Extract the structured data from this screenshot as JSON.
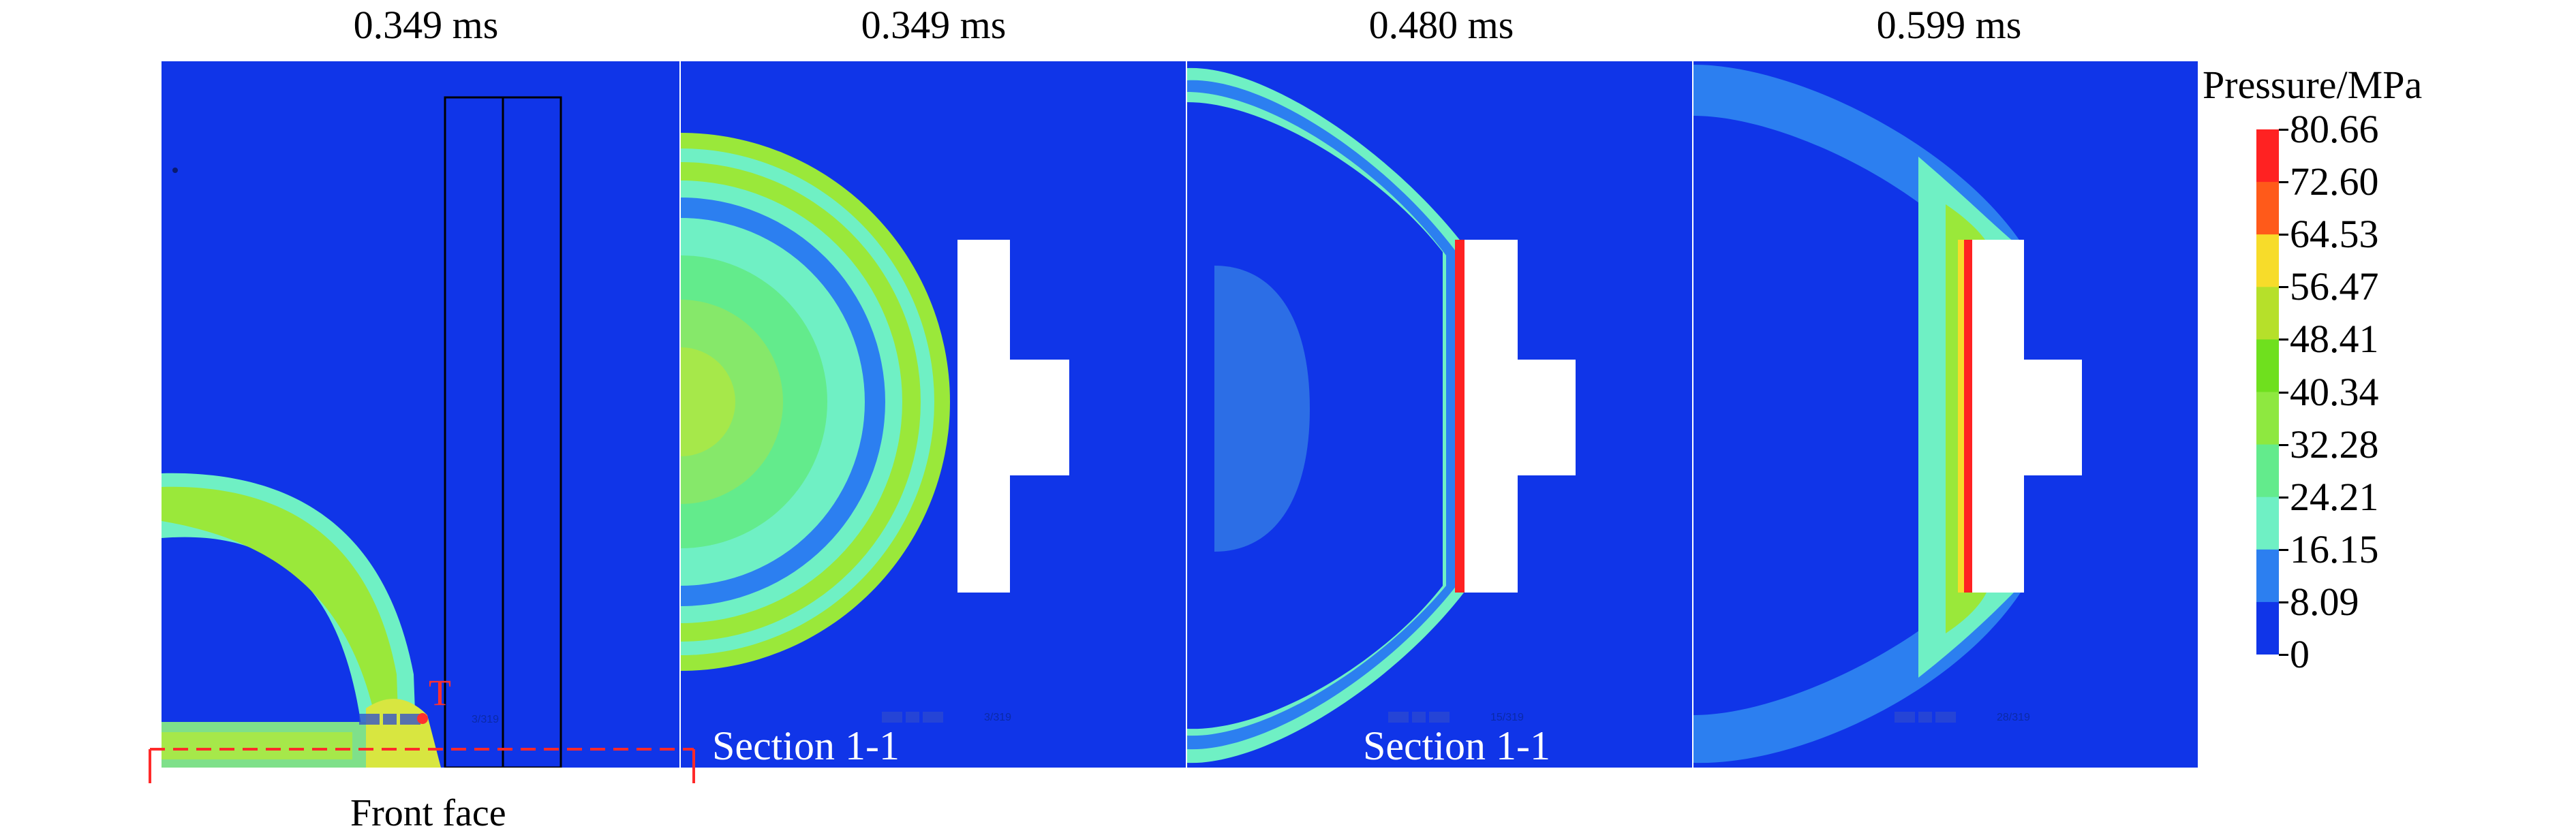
{
  "panels": [
    {
      "time": "0.349 ms",
      "section_label": "",
      "player_text": "3/319"
    },
    {
      "time": "0.349 ms",
      "section_label": "Section 1-1",
      "player_text": "3/319"
    },
    {
      "time": "0.480 ms",
      "section_label": "Section 1-1",
      "player_text": "15/319"
    },
    {
      "time": "0.599 ms",
      "section_label": "",
      "player_text": "28/319"
    }
  ],
  "annotations": {
    "front_face": "Front face",
    "point_t": "T"
  },
  "colorbar": {
    "title": "Pressure/MPa",
    "ticks": [
      "80.66",
      "72.60",
      "64.53",
      "56.47",
      "48.41",
      "40.34",
      "32.28",
      "24.21",
      "16.15",
      "8.09",
      "0"
    ],
    "colors": [
      "#ff2222",
      "#ff5a1a",
      "#f7dc2a",
      "#b6e02a",
      "#6fe01e",
      "#8ee840",
      "#63eb8c",
      "#6ff0c4",
      "#2c7ff0",
      "#1035e8"
    ]
  },
  "colors": {
    "background_blue": "#1035e8",
    "wave_green": "#9ae83a",
    "wave_cyan": "#6ff0c4",
    "wave_light_blue": "#2c7ff0",
    "high_red": "#ff2222",
    "marker_red": "#ff3030"
  }
}
